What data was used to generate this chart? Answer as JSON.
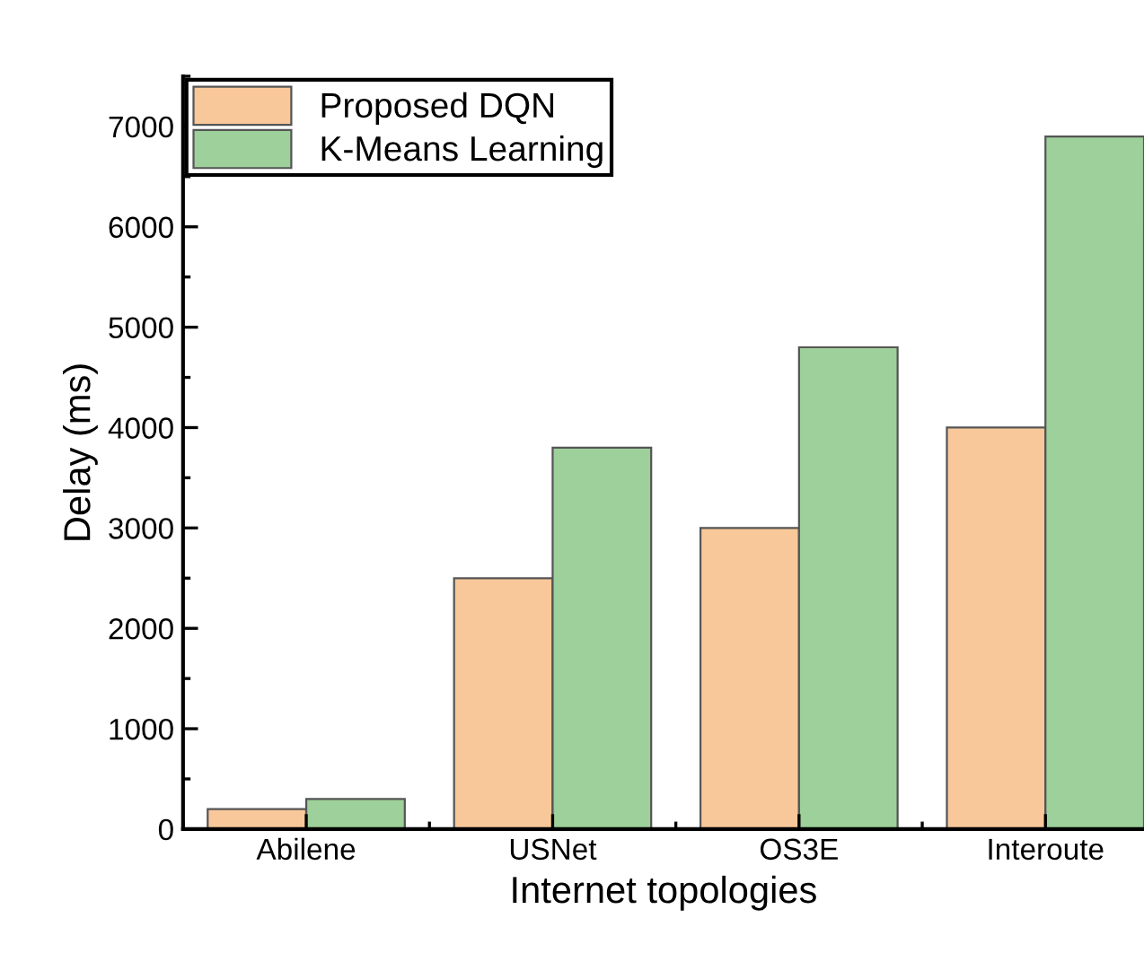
{
  "chart_data": {
    "type": "bar",
    "xlabel": "Internet topologies",
    "ylabel": "Delay (ms)",
    "categories": [
      "Abilene",
      "USNet",
      "OS3E",
      "Interoute"
    ],
    "series": [
      {
        "name": "Proposed DQN",
        "color": "#f9c89a",
        "values": [
          200,
          2500,
          3000,
          4000
        ]
      },
      {
        "name": "K-Means Learning",
        "color": "#9dd09a",
        "values": [
          300,
          3800,
          4800,
          6900
        ]
      }
    ],
    "ylim": [
      0,
      7500
    ],
    "yticks": [
      0,
      1000,
      2000,
      3000,
      4000,
      5000,
      6000,
      7000
    ],
    "grid": false,
    "legend": "top left"
  }
}
